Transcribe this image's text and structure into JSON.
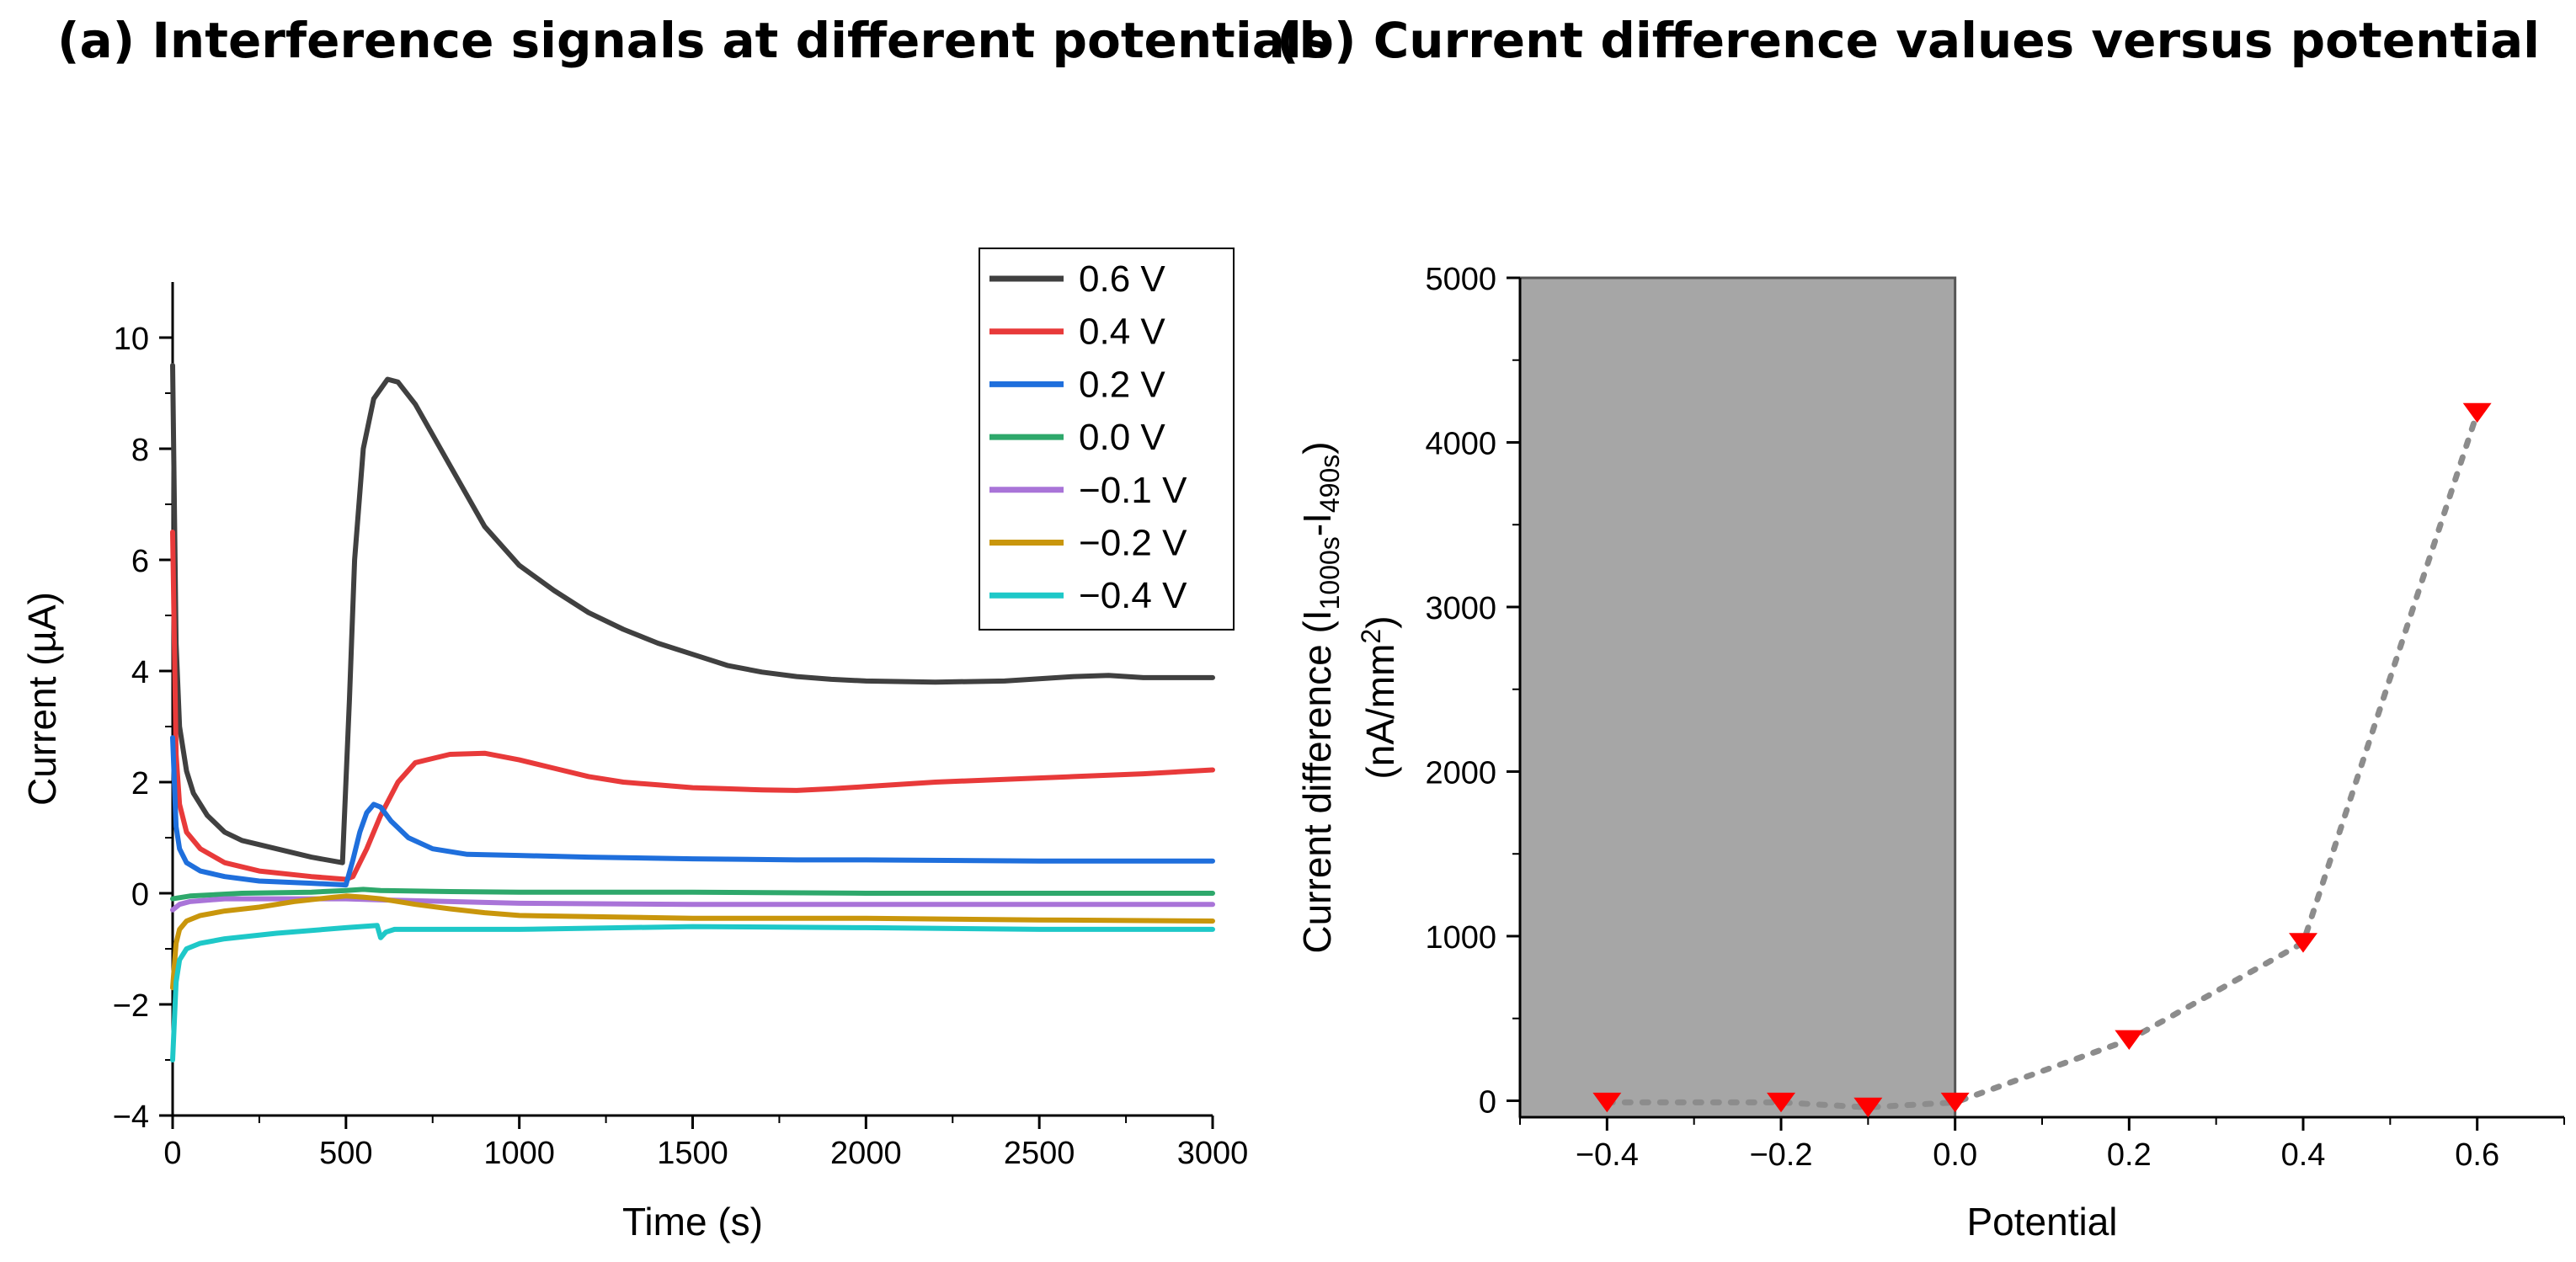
{
  "panel_a": {
    "title": "(a) Interference signals at different potentials"
  },
  "panel_b": {
    "title": "(b) Current difference values versus potential"
  },
  "chart_data": [
    {
      "type": "line",
      "title": "(a) Interference signals at different potentials",
      "xlabel": "Time (s)",
      "ylabel": "Current (µA)",
      "xlim": [
        0,
        3000
      ],
      "ylim": [
        -4,
        11
      ],
      "xticks": [
        0,
        500,
        1000,
        1500,
        2000,
        2500,
        3000
      ],
      "xtick_labels": [
        "0",
        "500",
        "1000",
        "1500",
        "2000",
        "2500",
        "3000"
      ],
      "yticks": [
        -4,
        -2,
        0,
        2,
        4,
        6,
        8,
        10
      ],
      "ytick_labels": [
        "−4",
        "−2",
        "0",
        "2",
        "4",
        "6",
        "8",
        "10"
      ],
      "legend_position": "top-right",
      "series": [
        {
          "name": "0.6  V",
          "color": "#404040",
          "x": [
            0,
            10,
            20,
            40,
            60,
            100,
            150,
            200,
            300,
            400,
            490,
            510,
            525,
            550,
            580,
            620,
            650,
            700,
            800,
            900,
            1000,
            1100,
            1200,
            1300,
            1400,
            1500,
            1600,
            1700,
            1800,
            1900,
            2000,
            2200,
            2400,
            2600,
            2700,
            2800,
            3000
          ],
          "y": [
            9.5,
            4.5,
            3.0,
            2.2,
            1.8,
            1.4,
            1.1,
            0.95,
            0.8,
            0.65,
            0.55,
            3.5,
            6.0,
            8.0,
            8.9,
            9.25,
            9.2,
            8.8,
            7.7,
            6.6,
            5.9,
            5.45,
            5.05,
            4.75,
            4.5,
            4.3,
            4.1,
            3.98,
            3.9,
            3.85,
            3.82,
            3.8,
            3.82,
            3.9,
            3.92,
            3.88,
            3.88
          ]
        },
        {
          "name": "0.4  V",
          "color": "#e83a3a",
          "x": [
            0,
            10,
            20,
            40,
            80,
            150,
            250,
            400,
            500,
            520,
            560,
            600,
            650,
            700,
            800,
            900,
            1000,
            1100,
            1200,
            1300,
            1400,
            1500,
            1600,
            1700,
            1800,
            1900,
            2000,
            2200,
            2400,
            2600,
            2800,
            3000
          ],
          "y": [
            6.5,
            2.5,
            1.6,
            1.1,
            0.8,
            0.55,
            0.4,
            0.3,
            0.25,
            0.3,
            0.8,
            1.4,
            2.0,
            2.35,
            2.5,
            2.52,
            2.4,
            2.25,
            2.1,
            2.0,
            1.95,
            1.9,
            1.88,
            1.86,
            1.85,
            1.88,
            1.92,
            2.0,
            2.05,
            2.1,
            2.15,
            2.22
          ]
        },
        {
          "name": "0.2  V",
          "color": "#1f6fdc",
          "x": [
            0,
            10,
            20,
            40,
            80,
            150,
            250,
            400,
            500,
            520,
            540,
            560,
            580,
            600,
            630,
            680,
            750,
            850,
            1000,
            1200,
            1500,
            1800,
            2000,
            2500,
            3000
          ],
          "y": [
            2.8,
            1.2,
            0.8,
            0.55,
            0.4,
            0.3,
            0.22,
            0.18,
            0.15,
            0.6,
            1.1,
            1.45,
            1.6,
            1.55,
            1.3,
            1.0,
            0.8,
            0.7,
            0.68,
            0.65,
            0.62,
            0.6,
            0.6,
            0.58,
            0.58
          ]
        },
        {
          "name": "0.0  V",
          "color": "#2ea86b",
          "x": [
            0,
            50,
            200,
            400,
            500,
            550,
            600,
            800,
            1000,
            1500,
            2000,
            2500,
            3000
          ],
          "y": [
            -0.1,
            -0.05,
            0.0,
            0.02,
            0.05,
            0.07,
            0.05,
            0.03,
            0.02,
            0.02,
            0.0,
            0.0,
            0.0
          ]
        },
        {
          "name": "−0.1  V",
          "color": "#a974d8",
          "x": [
            0,
            20,
            50,
            150,
            300,
            500,
            600,
            800,
            1000,
            1500,
            2000,
            2500,
            3000
          ],
          "y": [
            -0.3,
            -0.2,
            -0.15,
            -0.1,
            -0.1,
            -0.1,
            -0.12,
            -0.15,
            -0.18,
            -0.2,
            -0.2,
            -0.2,
            -0.2
          ]
        },
        {
          "name": "−0.2  V",
          "color": "#c9960c",
          "x": [
            0,
            10,
            20,
            40,
            80,
            150,
            250,
            350,
            450,
            500,
            550,
            600,
            700,
            800,
            900,
            1000,
            1200,
            1500,
            2000,
            2500,
            3000
          ],
          "y": [
            -1.7,
            -0.9,
            -0.65,
            -0.5,
            -0.4,
            -0.32,
            -0.25,
            -0.15,
            -0.08,
            -0.05,
            -0.07,
            -0.1,
            -0.2,
            -0.28,
            -0.35,
            -0.4,
            -0.42,
            -0.45,
            -0.45,
            -0.48,
            -0.5
          ]
        },
        {
          "name": "−0.4  V",
          "color": "#1ec8c8",
          "x": [
            0,
            10,
            20,
            40,
            80,
            150,
            300,
            500,
            590,
            600,
            615,
            640,
            700,
            1000,
            1500,
            2000,
            2500,
            3000
          ],
          "y": [
            -3.0,
            -1.6,
            -1.2,
            -1.0,
            -0.9,
            -0.82,
            -0.72,
            -0.62,
            -0.58,
            -0.8,
            -0.7,
            -0.65,
            -0.65,
            -0.65,
            -0.6,
            -0.62,
            -0.65,
            -0.65
          ]
        }
      ]
    },
    {
      "type": "scatter",
      "title": "(b) Current difference values versus potential",
      "xlabel": "Potential",
      "ylabel": "Current difference (I1000s-I490s)",
      "ylabel2": "(nA/mm2)",
      "xlim": [
        -0.5,
        0.7
      ],
      "ylim": [
        -100,
        5000
      ],
      "xticks": [
        -0.4,
        -0.2,
        0.0,
        0.2,
        0.4,
        0.6
      ],
      "xtick_labels": [
        "−0.4",
        "−0.2",
        "0.0",
        "0.2",
        "0.4",
        "0.6"
      ],
      "yticks": [
        0,
        1000,
        2000,
        3000,
        4000,
        5000
      ],
      "ytick_labels": [
        "0",
        "1000",
        "2000",
        "3000",
        "4000",
        "5000"
      ],
      "shaded_region": {
        "x": [
          -0.5,
          0.0
        ],
        "y": [
          -100,
          5000
        ],
        "color": "#a6a6a6"
      },
      "marker_color": "#ff0000",
      "line_color": "#8c8c8c",
      "series": [
        {
          "name": "Current difference",
          "x": [
            -0.4,
            -0.2,
            -0.1,
            0.0,
            0.2,
            0.4,
            0.6
          ],
          "y": [
            -10,
            -10,
            -40,
            -10,
            370,
            960,
            4180
          ]
        }
      ]
    }
  ]
}
